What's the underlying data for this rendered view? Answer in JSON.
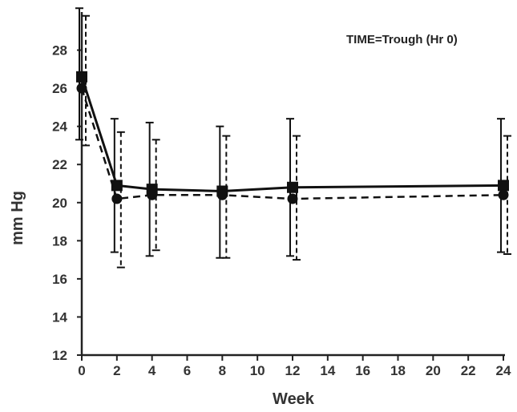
{
  "chart_data": {
    "type": "line",
    "title": "",
    "annotation": "TIME=Trough (Hr 0)",
    "xlabel": "Week",
    "ylabel": "mm Hg",
    "xlim": [
      0,
      24
    ],
    "ylim": [
      12,
      30
    ],
    "xticks": [
      0,
      2,
      4,
      6,
      8,
      10,
      12,
      14,
      16,
      18,
      20,
      22,
      24
    ],
    "yticks": [
      12,
      14,
      16,
      18,
      20,
      22,
      24,
      26,
      28
    ],
    "grid": false,
    "legend": "none",
    "series": [
      {
        "style": "solid",
        "marker": "square",
        "color": "#111111",
        "x": [
          0,
          2,
          4,
          8,
          12,
          24
        ],
        "y": [
          26.6,
          20.9,
          20.7,
          20.6,
          20.8,
          20.9
        ],
        "err_low": [
          23.3,
          17.4,
          17.2,
          17.1,
          17.2,
          17.4
        ],
        "err_high": [
          30.2,
          24.4,
          24.2,
          24.0,
          24.4,
          24.4
        ]
      },
      {
        "style": "dashed",
        "marker": "circle",
        "color": "#111111",
        "x": [
          0,
          2,
          4,
          8,
          12,
          24
        ],
        "y": [
          26.0,
          20.2,
          20.4,
          20.4,
          20.2,
          20.4
        ],
        "err_low": [
          23.0,
          16.6,
          17.5,
          17.1,
          17.0,
          17.3
        ],
        "err_high": [
          29.8,
          23.7,
          23.3,
          23.5,
          23.5,
          23.5
        ]
      }
    ]
  }
}
